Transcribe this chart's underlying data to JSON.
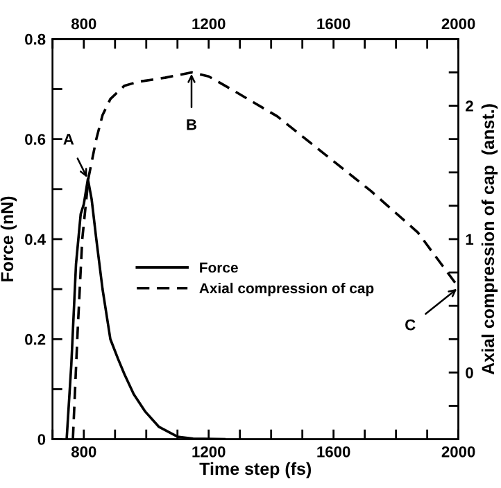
{
  "chart_data": {
    "type": "line",
    "xlabel": "Time step (fs)",
    "ylabel": "Force (nN)",
    "y2label": "Axial compression of cap  (anst.)",
    "xlim": [
      700,
      2000
    ],
    "xticks": [
      {
        "value": 700,
        "label": null
      },
      800,
      {
        "value": 900,
        "label": null
      },
      {
        "value": 1000,
        "label": null
      },
      {
        "value": 1100,
        "label": null
      },
      1200,
      {
        "value": 1300,
        "label": null
      },
      {
        "value": 1400,
        "label": null
      },
      {
        "value": 1500,
        "label": null
      },
      1600,
      {
        "value": 1700,
        "label": null
      },
      {
        "value": 1800,
        "label": null
      },
      {
        "value": 1900,
        "label": null
      },
      2000
    ],
    "x2lim": [
      700,
      2000
    ],
    "x2ticks": [
      {
        "value": 700,
        "label": null
      },
      800,
      {
        "value": 900,
        "label": null
      },
      {
        "value": 1000,
        "label": null
      },
      {
        "value": 1100,
        "label": null
      },
      1200,
      {
        "value": 1300,
        "label": null
      },
      {
        "value": 1400,
        "label": null
      },
      {
        "value": 1500,
        "label": null
      },
      1600,
      {
        "value": 1700,
        "label": null
      },
      {
        "value": 1800,
        "label": null
      },
      {
        "value": 1900,
        "label": null
      },
      2000
    ],
    "ylim": [
      0,
      0.8
    ],
    "yticks": [
      0,
      {
        "value": 0.1,
        "label": null
      },
      0.2,
      {
        "value": 0.3,
        "label": null
      },
      0.4,
      {
        "value": 0.5,
        "label": null
      },
      0.6,
      {
        "value": 0.7,
        "label": null
      },
      0.8
    ],
    "y2lim": [
      -0.5,
      2.5
    ],
    "y2ticks": [
      {
        "value": -0.25,
        "label": null
      },
      0,
      {
        "value": 0.25,
        "label": null
      },
      {
        "value": 0.5,
        "label": null
      },
      {
        "value": 0.75,
        "label": null
      },
      1,
      {
        "value": 1.25,
        "label": null
      },
      {
        "value": 1.5,
        "label": null
      },
      {
        "value": 1.75,
        "label": null
      },
      2,
      {
        "value": 2.25,
        "label": null
      }
    ],
    "legend": "center",
    "grid": false,
    "series": [
      {
        "name": "Force",
        "color": "#000000",
        "line_style": "solid",
        "x": [
          745,
          760,
          775,
          790,
          800,
          813,
          825,
          840,
          860,
          885,
          910,
          930,
          960,
          997,
          1040,
          1100,
          1150,
          1250
        ],
        "values": [
          0,
          0.15,
          0.35,
          0.45,
          0.47,
          0.52,
          0.48,
          0.4,
          0.3,
          0.2,
          0.16,
          0.13,
          0.09,
          0.055,
          0.025,
          0.005,
          0.001,
          0
        ]
      },
      {
        "name": "Axial compression of cap",
        "color": "#000000",
        "line_style": "dashed",
        "axis": "y2",
        "x": [
          765,
          780,
          795,
          815,
          840,
          860,
          885,
          930,
          975,
          1060,
          1145,
          1200,
          1275,
          1420,
          1570,
          1720,
          1870,
          2000
        ],
        "values": [
          -0.5,
          0.3,
          1.0,
          1.46,
          1.75,
          1.93,
          2.05,
          2.15,
          2.18,
          2.21,
          2.25,
          2.22,
          2.12,
          1.92,
          1.64,
          1.36,
          1.05,
          0.64
        ]
      }
    ],
    "annotations": [
      {
        "text": "A",
        "x": 813,
        "y": 0.52
      },
      {
        "text": "B",
        "x": 1145,
        "y": 0.734
      },
      {
        "text": "C",
        "x": 2000,
        "y": 0.303
      }
    ]
  }
}
